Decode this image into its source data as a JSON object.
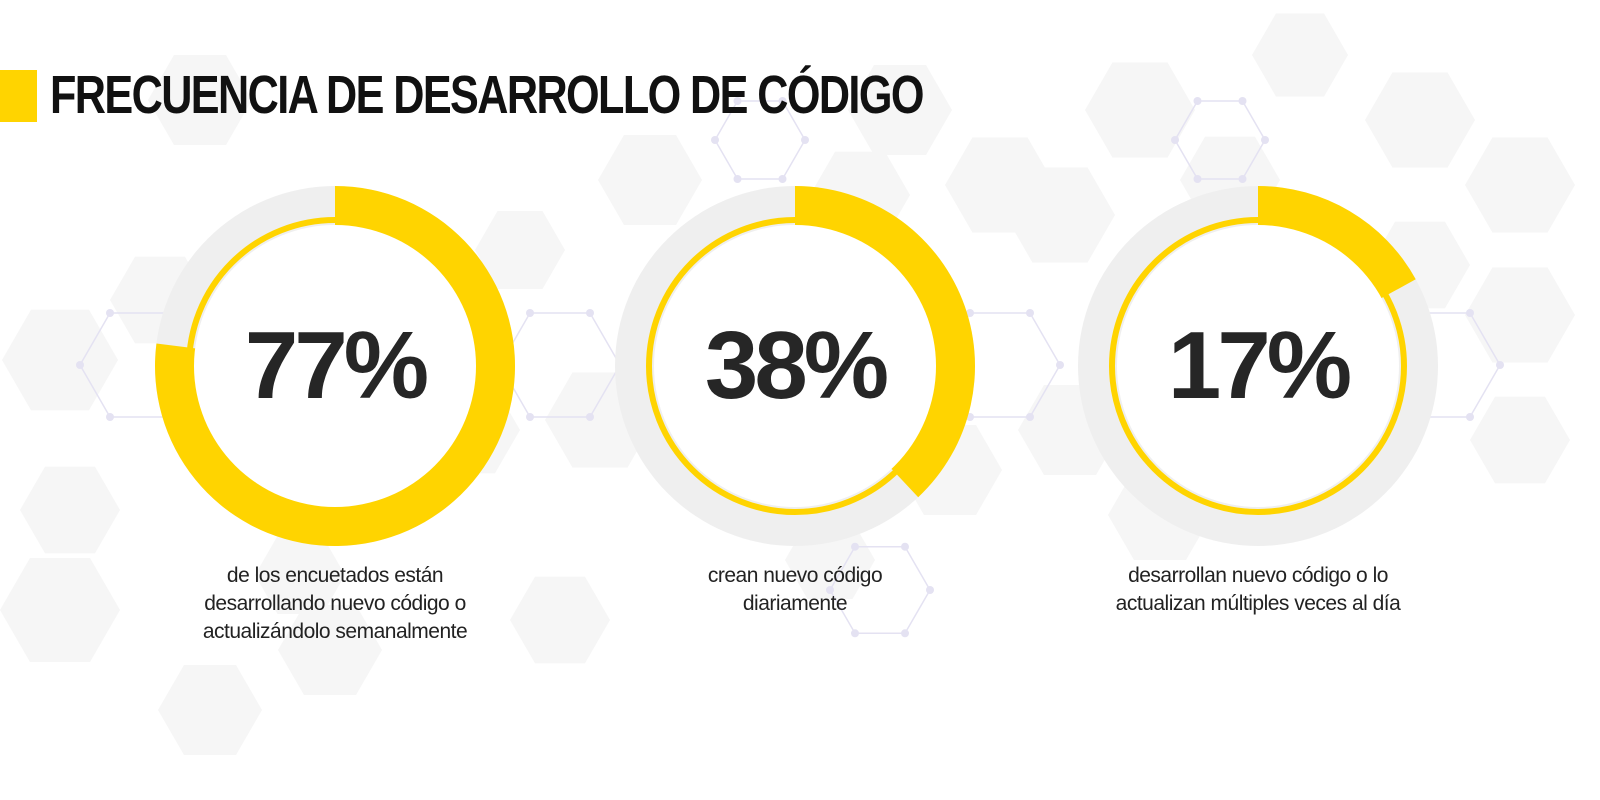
{
  "colors": {
    "accent": "#FFD400",
    "track": "#EFEFEF",
    "text": "#262626"
  },
  "title": "FRECUENCIA DE DESARROLLO DE CÓDIGO",
  "chart_data": [
    {
      "type": "pie",
      "value": 77,
      "value_label": "77%",
      "description_lines": [
        "de los encuetados están",
        "desarrollando nuevo código o",
        "actualizándolo semanalmente"
      ]
    },
    {
      "type": "pie",
      "value": 38,
      "value_label": "38%",
      "description_lines": [
        "crean nuevo código",
        "diariamente"
      ]
    },
    {
      "type": "pie",
      "value": 17,
      "value_label": "17%",
      "description_lines": [
        "desarrollan nuevo código o lo",
        "actualizan múltiples veces al día"
      ]
    }
  ]
}
